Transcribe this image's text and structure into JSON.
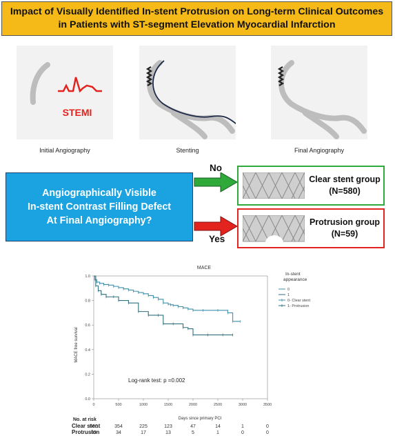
{
  "title": "Impact of Visually Identified In-stent Protrusion on Long-term Clinical Outcomes\nin Patients with ST-segment Elevation Myocardial Infarction",
  "panels": [
    {
      "caption": "Initial Angiography",
      "label": "STEMI"
    },
    {
      "caption": "Stenting"
    },
    {
      "caption": "Final Angiography"
    }
  ],
  "question": "Angiographically Visible\nIn-stent Contrast Filling Defect\nAt Final Angiography?",
  "branches": {
    "no": {
      "label": "No",
      "group": "Clear stent group\n(N=580)"
    },
    "yes": {
      "label": "Yes",
      "group": "Protrusion group\n(N=59)"
    }
  },
  "colors": {
    "title_bg": "#f5b918",
    "question_bg": "#1aa3e0",
    "no_arrow": "#2faa3a",
    "yes_arrow": "#e3231e",
    "stemi": "#e3231e"
  },
  "chart_data": {
    "type": "line",
    "title": "MACE",
    "xlabel": "Days since primary PCI",
    "ylabel": "MACE free survival",
    "xlim": [
      0,
      3500
    ],
    "ylim": [
      0.0,
      1.0
    ],
    "xticks": [
      0,
      500,
      1000,
      1500,
      2000,
      2500,
      3000,
      3500
    ],
    "yticks": [
      0.0,
      0.2,
      0.4,
      0.6,
      0.8,
      1.0
    ],
    "legend_title": "In-stent\nappearance",
    "legend_entries": [
      "0",
      "1",
      "0- Clear stent",
      "1- Protrusion"
    ],
    "annotation": "Log-rank test: p =0.002",
    "series": [
      {
        "name": "0- Clear stent",
        "color": "#3f8fa8",
        "x": [
          0,
          20,
          60,
          120,
          200,
          300,
          400,
          500,
          600,
          700,
          800,
          900,
          1000,
          1100,
          1200,
          1300,
          1400,
          1500,
          1550,
          1600,
          1700,
          1800,
          1900,
          2000,
          2200,
          2500,
          2700,
          2800,
          2950
        ],
        "y": [
          1.0,
          0.97,
          0.95,
          0.94,
          0.93,
          0.925,
          0.915,
          0.905,
          0.895,
          0.885,
          0.875,
          0.865,
          0.855,
          0.84,
          0.825,
          0.81,
          0.78,
          0.77,
          0.765,
          0.76,
          0.75,
          0.74,
          0.73,
          0.72,
          0.72,
          0.72,
          0.7,
          0.63,
          0.63
        ]
      },
      {
        "name": "1- Protrusion",
        "color": "#2f6f80",
        "x": [
          0,
          40,
          90,
          150,
          250,
          400,
          500,
          700,
          900,
          1100,
          1300,
          1400,
          1600,
          1800,
          1900,
          2000,
          2300,
          2600,
          2800
        ],
        "y": [
          1.0,
          0.92,
          0.88,
          0.85,
          0.83,
          0.83,
          0.8,
          0.78,
          0.71,
          0.68,
          0.68,
          0.61,
          0.61,
          0.58,
          0.57,
          0.52,
          0.52,
          0.52,
          0.52
        ]
      }
    ],
    "risk_table": {
      "header": "No. at risk",
      "rows": [
        {
          "label": "Clear stent",
          "values": [
            "580",
            "354",
            "225",
            "123",
            "47",
            "14",
            "1",
            "0"
          ]
        },
        {
          "label": "Protrusion",
          "values": [
            "59",
            "34",
            "17",
            "13",
            "5",
            "1",
            "0",
            "0"
          ]
        }
      ]
    }
  }
}
